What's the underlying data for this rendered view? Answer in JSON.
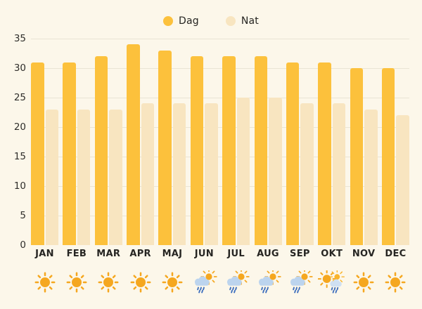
{
  "colors": {
    "background": "#fcf7ea",
    "dag_bar": "#fcc13c",
    "nat_bar": "#f8e5c0",
    "gridline": "#eae4d4",
    "text": "#262522",
    "sun": "#f5a71f",
    "cloud": "#bcd4ee",
    "rain": "#3e6fbe"
  },
  "chart_data": {
    "type": "bar",
    "title": "",
    "xlabel": "",
    "ylabel": "",
    "categories": [
      "JAN",
      "FEB",
      "MAR",
      "APR",
      "MAJ",
      "JUN",
      "JUL",
      "AUG",
      "SEP",
      "OKT",
      "NOV",
      "DEC"
    ],
    "series": [
      {
        "name": "Dag",
        "color": "#fcc13c",
        "values": [
          31,
          31,
          32,
          34,
          33,
          32,
          32,
          32,
          31,
          31,
          30,
          30
        ]
      },
      {
        "name": "Nat",
        "color": "#f8e5c0",
        "values": [
          23,
          23,
          23,
          24,
          24,
          24,
          25,
          25,
          24,
          24,
          23,
          22
        ]
      }
    ],
    "ylim": [
      0,
      35
    ],
    "yticks": [
      35,
      30,
      25,
      20,
      15,
      10,
      5,
      0
    ],
    "grid": true,
    "legend_position": "top-center",
    "weather_icons": [
      "sun",
      "sun",
      "sun",
      "sun",
      "sun",
      "sun-rain",
      "sun-rain",
      "sun-rain",
      "sun-rain",
      "sun-and-rain",
      "sun",
      "sun"
    ]
  }
}
